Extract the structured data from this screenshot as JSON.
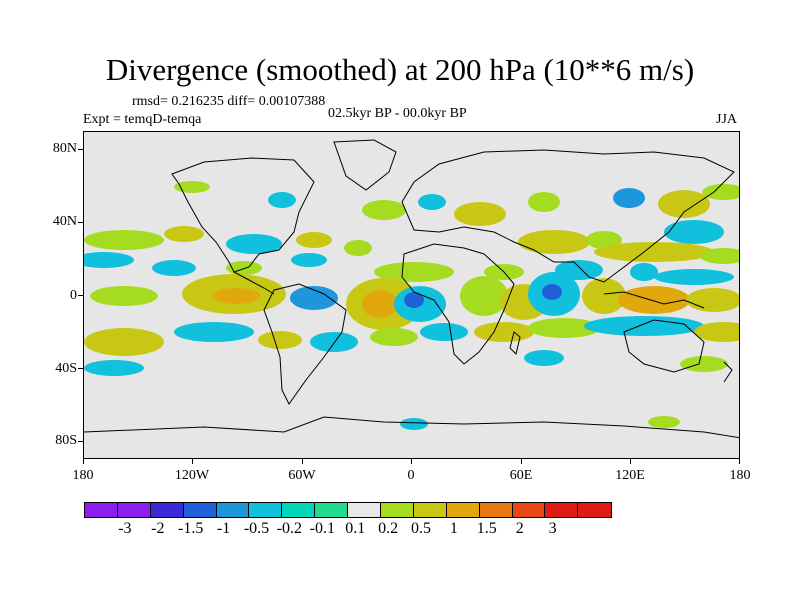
{
  "title": "Divergence (smoothed) at 200 hPa (10**6 m/s)",
  "stats_text": "rmsd= 0.216235 diff= 0.00107388",
  "experiment_text": "Expt = temqD-temqa",
  "period_text": "02.5kyr BP - 00.0kyr BP",
  "season_text": "JJA",
  "lat_labels": [
    "80N",
    "40N",
    "0",
    "40S",
    "80S"
  ],
  "lon_labels": [
    "180",
    "120W",
    "60W",
    "0",
    "60E",
    "120E",
    "180"
  ],
  "colorbar": {
    "labels": [
      "-3",
      "-2",
      "-1.5",
      "-1",
      "-0.5",
      "-0.2",
      "-0.1",
      "0.1",
      "0.2",
      "0.5",
      "1",
      "1.5",
      "2",
      "3"
    ],
    "colors": [
      "#8d1ef0",
      "#3b2bd6",
      "#2060d8",
      "#1e96dc",
      "#10c0dc",
      "#00d8b8",
      "#20dc8c",
      "#e8e8e8",
      "#a6dc20",
      "#c8c814",
      "#e0a80c",
      "#e87812",
      "#e84614",
      "#e01a14"
    ]
  },
  "map_background_color": "#e6e6e6"
}
